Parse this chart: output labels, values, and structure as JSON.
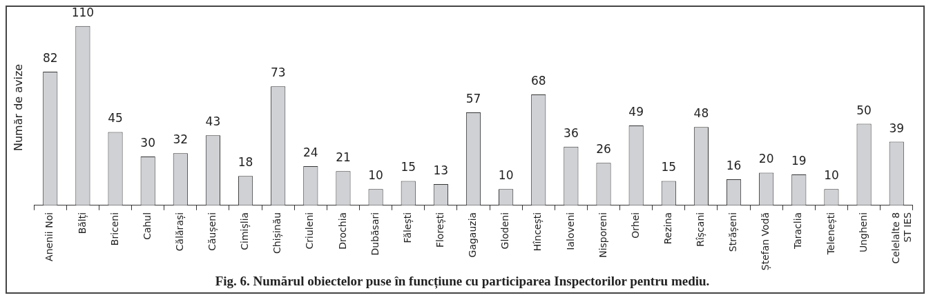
{
  "chart_data": {
    "type": "bar",
    "title": "Fig. 6. Numărul obiectelor puse în funcțiune cu participarea Inspectorilor pentru mediu.",
    "ylabel": "Număr de avize",
    "categories": [
      "Anenii Noi",
      "Bălți",
      "Briceni",
      "Cahul",
      "Călărași",
      "Căușeni",
      "Cimișlia",
      "Chișinău",
      "Criuleni",
      "Drochia",
      "Dubăsari",
      "Fălești",
      "Florești",
      "Gagauzia",
      "Glodeni",
      "Hîncești",
      "Ialoveni",
      "Nisporeni",
      "Orhei",
      "Rezina",
      "Rîșcani",
      "Strășeni",
      "Ștefan Vodă",
      "Taraclia",
      "Telenești",
      "Ungheni",
      "Celelalte 8\nST IES"
    ],
    "values": [
      82,
      110,
      45,
      30,
      32,
      43,
      18,
      73,
      24,
      21,
      10,
      15,
      13,
      57,
      10,
      68,
      36,
      26,
      49,
      15,
      48,
      16,
      20,
      19,
      10,
      50,
      39
    ],
    "color": "#d0d1d5",
    "data_labels": true,
    "grid": false,
    "legend": false
  }
}
